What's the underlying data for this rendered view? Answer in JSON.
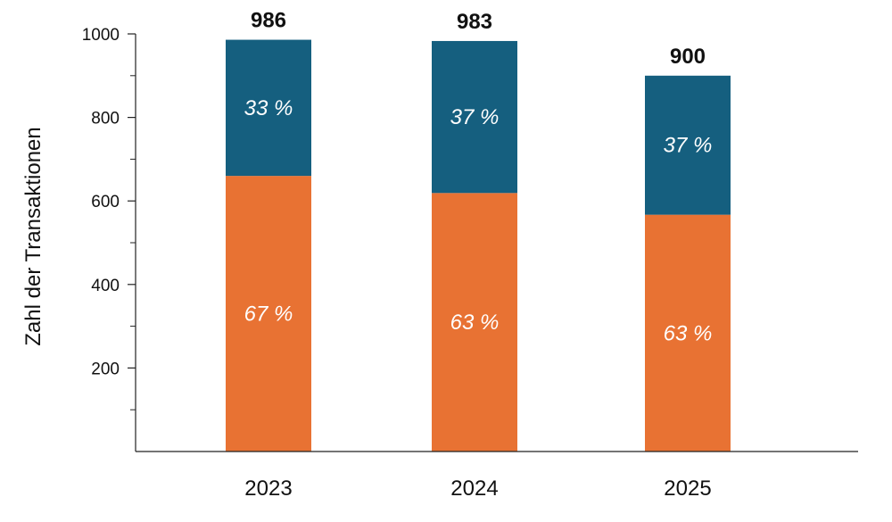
{
  "chart_data": {
    "type": "bar",
    "stacked": true,
    "ylabel": "Zahl der Transaktionen",
    "xlabel": "",
    "ylim": [
      0,
      1000
    ],
    "yticks": [
      200,
      400,
      600,
      800,
      1000
    ],
    "yticks_minor": [
      100,
      300,
      500,
      700,
      900
    ],
    "categories": [
      "2023",
      "2024",
      "2025"
    ],
    "totals": [
      986,
      983,
      900
    ],
    "total_labels": [
      "986",
      "983",
      "900"
    ],
    "series": [
      {
        "values": [
          660,
          619,
          567
        ],
        "labels": [
          "67 %",
          "63 %",
          "63 %"
        ],
        "color": "#e87233"
      },
      {
        "values": [
          326,
          364,
          333
        ],
        "labels": [
          "33 %",
          "37 %",
          "37 %"
        ],
        "color": "#155f7f"
      }
    ],
    "grid": false,
    "legend": "none"
  }
}
